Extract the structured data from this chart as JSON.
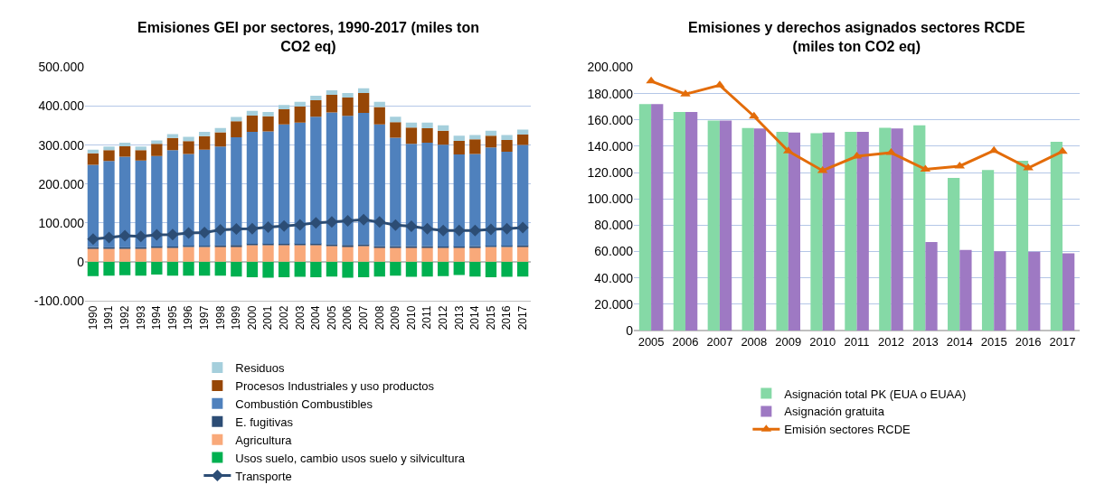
{
  "chart_data": [
    {
      "type": "bar",
      "title": "Emisiones GEI por sectores, 1990-2017 (miles ton\nCO2 eq)",
      "stacked": true,
      "grid": "y",
      "legend": "bottom",
      "categories": [
        "1990",
        "1991",
        "1992",
        "1993",
        "1994",
        "1995",
        "1996",
        "1997",
        "1998",
        "1999",
        "2000",
        "2001",
        "2002",
        "2003",
        "2004",
        "2005",
        "2006",
        "2007",
        "2008",
        "2009",
        "2010",
        "2011",
        "2012",
        "2013",
        "2014",
        "2015",
        "2016",
        "2017"
      ],
      "ylim": [
        -100000,
        500000
      ],
      "yticks": [
        {
          "value": -100000,
          "label": "-100.000"
        },
        {
          "value": 0,
          "label": "0"
        },
        {
          "value": 100000,
          "label": "100.000"
        },
        {
          "value": 200000,
          "label": "200.000"
        },
        {
          "value": 300000,
          "label": "300.000"
        },
        {
          "value": 400000,
          "label": "400.000"
        },
        {
          "value": 500000,
          "label": "500.000"
        }
      ],
      "series": [
        {
          "name": "Usos suelo, cambio usos suelo y silvicultura",
          "color": "#00b050",
          "values": [
            -37000,
            -36000,
            -35000,
            -36000,
            -33000,
            -36000,
            -36000,
            -36000,
            -36000,
            -38000,
            -40000,
            -41000,
            -40000,
            -39000,
            -40000,
            -38000,
            -41000,
            -40000,
            -38000,
            -36000,
            -39000,
            -38000,
            -37000,
            -34000,
            -38000,
            -40000,
            -39000,
            -38000
          ]
        },
        {
          "name": "Agricultura",
          "color": "#f9a97a",
          "values": [
            35000,
            34000,
            34000,
            34000,
            36000,
            36000,
            38000,
            38000,
            39000,
            40000,
            43000,
            43000,
            43000,
            43000,
            43000,
            41000,
            40000,
            41000,
            37000,
            37000,
            37000,
            37000,
            36000,
            36000,
            37000,
            38000,
            38000,
            39000
          ]
        },
        {
          "name": "E. fugitivas",
          "color": "#2c4d75",
          "values": [
            3000,
            3000,
            3000,
            3000,
            3000,
            3000,
            3000,
            3000,
            3000,
            3000,
            3000,
            3000,
            3000,
            3000,
            3000,
            3000,
            3000,
            3000,
            3000,
            3000,
            3000,
            3000,
            3000,
            3000,
            3000,
            3000,
            3000,
            3000
          ]
        },
        {
          "name": "Combustión Combustibles",
          "color": "#4f81bd",
          "values": [
            211000,
            222000,
            233000,
            223000,
            233000,
            248000,
            236000,
            247000,
            254000,
            277000,
            288000,
            289000,
            307000,
            312000,
            327000,
            340000,
            332000,
            339000,
            313000,
            279000,
            263000,
            266000,
            262000,
            237000,
            237000,
            253000,
            242000,
            258000
          ]
        },
        {
          "name": "Procesos Industriales y uso productos",
          "color": "#974706",
          "values": [
            30000,
            28000,
            27000,
            27000,
            31000,
            31000,
            33000,
            35000,
            37000,
            41000,
            42000,
            39000,
            39000,
            41000,
            42000,
            45000,
            47000,
            51000,
            45000,
            40000,
            42000,
            37000,
            36000,
            35000,
            38000,
            30000,
            30000,
            27000
          ]
        },
        {
          "name": "Residuos",
          "color": "#a5cfdc",
          "values": [
            9000,
            9000,
            9000,
            9000,
            9000,
            10000,
            11000,
            11000,
            11000,
            11000,
            12000,
            11000,
            11000,
            12000,
            12000,
            12000,
            12000,
            12000,
            13000,
            14000,
            13000,
            15000,
            14000,
            13000,
            11000,
            13000,
            13000,
            13000
          ]
        },
        {
          "name": "Transporte",
          "type": "line",
          "marker": "diamond",
          "color": "#2c4d75",
          "values": [
            58000,
            62000,
            67000,
            65000,
            69000,
            70000,
            74000,
            75000,
            82000,
            84000,
            85000,
            89000,
            92000,
            95000,
            100000,
            102000,
            105000,
            108000,
            102000,
            94000,
            91000,
            85000,
            80000,
            80000,
            80000,
            83000,
            85000,
            88000
          ]
        }
      ]
    },
    {
      "type": "bar",
      "title": "Emisiones y derechos asignados sectores RCDE\n(miles ton CO2 eq)",
      "grid": "y",
      "legend": "bottom",
      "categories": [
        "2005",
        "2006",
        "2007",
        "2008",
        "2009",
        "2010",
        "2011",
        "2012",
        "2013",
        "2014",
        "2015",
        "2016",
        "2017"
      ],
      "ylim": [
        0,
        200000
      ],
      "yticks": [
        {
          "value": 0,
          "label": "0"
        },
        {
          "value": 20000,
          "label": "20.000"
        },
        {
          "value": 40000,
          "label": "40.000"
        },
        {
          "value": 60000,
          "label": "60.000"
        },
        {
          "value": 80000,
          "label": "80.000"
        },
        {
          "value": 100000,
          "label": "100.000"
        },
        {
          "value": 120000,
          "label": "120.000"
        },
        {
          "value": 140000,
          "label": "140.000"
        },
        {
          "value": 160000,
          "label": "160.000"
        },
        {
          "value": 180000,
          "label": "180.000"
        },
        {
          "value": 200000,
          "label": "200.000"
        }
      ],
      "series": [
        {
          "name": "Asignación total PK (EUA o EUAA)",
          "color": "#85d9a6",
          "values": [
            172000,
            166000,
            159500,
            153800,
            151000,
            150000,
            151000,
            154000,
            156000,
            116000,
            122000,
            129000,
            143400
          ]
        },
        {
          "name": "Asignación gratuita",
          "color": "#9e79c3",
          "values": [
            172000,
            166000,
            159500,
            153500,
            150500,
            150500,
            151000,
            153500,
            67300,
            61200,
            60300,
            59800,
            58600
          ]
        },
        {
          "name": "Emisión sectores RCDE",
          "type": "line",
          "marker": "triangle",
          "color": "#e36c09",
          "values": [
            189500,
            179600,
            186400,
            162800,
            136300,
            121500,
            132400,
            135100,
            122500,
            124900,
            136800,
            123500,
            136100
          ]
        }
      ]
    }
  ]
}
